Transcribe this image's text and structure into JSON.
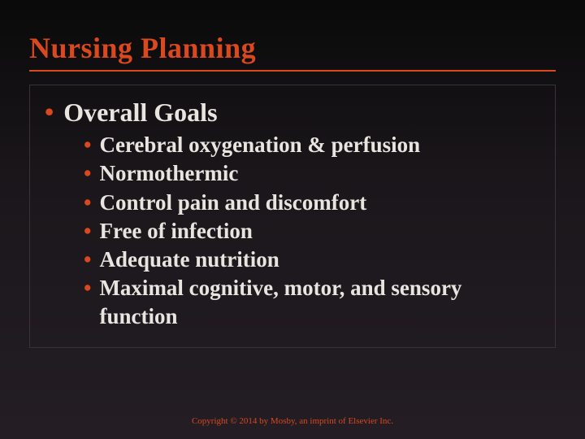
{
  "slide": {
    "title": "Nursing Planning",
    "heading": "Overall Goals",
    "items": [
      "Cerebral oxygenation & perfusion",
      "Normothermic",
      "Control pain and discomfort",
      "Free of infection",
      "Adequate nutrition",
      "Maximal cognitive, motor, and sensory function"
    ],
    "footer": "Copyright © 2014 by Mosby, an imprint of Elsevier Inc."
  },
  "style": {
    "accent_color": "#d9481f",
    "text_color": "#e8e4e0",
    "background_gradient_top": "#0a0a0a",
    "background_gradient_bottom": "#241e24",
    "box_border_color": "#3a3238",
    "title_fontsize": 36,
    "heading_fontsize": 32,
    "item_fontsize": 27,
    "footer_fontsize": 11,
    "font_family": "Georgia, serif",
    "font_weight": "bold"
  }
}
